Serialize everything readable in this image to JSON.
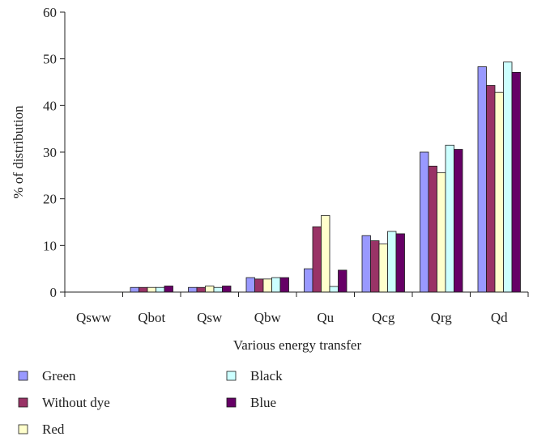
{
  "chart_data": {
    "type": "bar",
    "title": "",
    "xlabel": "Various energy transfer",
    "ylabel": "% of distribution",
    "ylim": [
      0,
      60
    ],
    "yticks": [
      0,
      10,
      20,
      30,
      40,
      50,
      60
    ],
    "grid": false,
    "legend_position": "bottom",
    "categories": [
      "Qsww",
      "Qbot",
      "Qsw",
      "Qbw",
      "Qu",
      "Qcg",
      "Qrg",
      "Qd"
    ],
    "series": [
      {
        "name": "Green",
        "color": "#9999ff",
        "values": [
          0,
          1.0,
          1.0,
          3.1,
          5.0,
          12.1,
          30.0,
          48.3
        ]
      },
      {
        "name": "Without dye",
        "color": "#993366",
        "values": [
          0,
          1.0,
          1.0,
          2.8,
          14.0,
          11.0,
          27.0,
          44.3
        ]
      },
      {
        "name": "Red",
        "color": "#ffffcc",
        "values": [
          0,
          1.0,
          1.3,
          2.8,
          16.4,
          10.3,
          25.6,
          42.8
        ]
      },
      {
        "name": "Black",
        "color": "#ccffff",
        "values": [
          0,
          1.0,
          1.0,
          3.1,
          1.2,
          13.0,
          31.5,
          49.3
        ]
      },
      {
        "name": "Blue",
        "color": "#660066",
        "values": [
          0,
          1.3,
          1.3,
          3.1,
          4.7,
          12.5,
          30.6,
          47.1
        ]
      }
    ]
  }
}
